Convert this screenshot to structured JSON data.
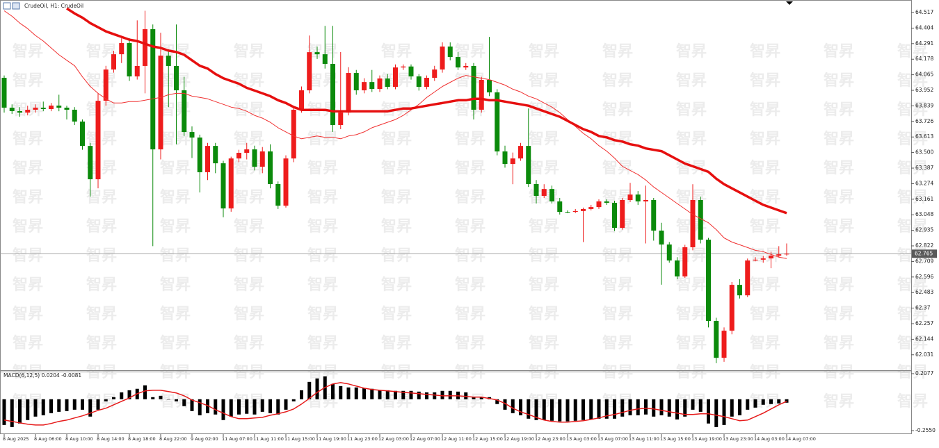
{
  "watermark": "智昇",
  "chart_data": [
    {
      "type": "candlestick",
      "title": "CrudeOil, H1:  CrudeOil",
      "up_color": "#ee1c1c",
      "down_color": "#0b8a0b",
      "ylim": [
        61.919,
        64.608
      ],
      "yticks": [
        64.517,
        64.404,
        64.291,
        64.178,
        64.065,
        63.952,
        63.839,
        63.726,
        63.613,
        {
          "value": 63.5,
          "label": "63.500"
        },
        63.387,
        63.274,
        63.161,
        63.048,
        62.935,
        62.822,
        62.709,
        62.596,
        62.483,
        62.37,
        62.257,
        62.144,
        62.031
      ],
      "last_price": 62.765,
      "categories": [
        "8 Aug 2025",
        null,
        null,
        null,
        "8 Aug 06:00",
        null,
        null,
        null,
        "8 Aug 10:00",
        null,
        null,
        null,
        "8 Aug 14:00",
        null,
        null,
        null,
        "8 Aug 18:00",
        null,
        null,
        null,
        "8 Aug 22:00",
        null,
        null,
        null,
        "9 Aug 02:00",
        null,
        null,
        null,
        "11 Aug 07:00",
        null,
        null,
        null,
        "11 Aug 11:00",
        null,
        null,
        null,
        "11 Aug 15:00",
        null,
        null,
        null,
        "11 Aug 19:00",
        null,
        null,
        null,
        "11 Aug 23:00",
        null,
        null,
        null,
        "12 Aug 03:00",
        null,
        null,
        null,
        "12 Aug 07:00",
        null,
        null,
        null,
        "12 Aug 11:00",
        null,
        null,
        null,
        "12 Aug 15:00",
        null,
        null,
        null,
        "12 Aug 19:00",
        null,
        null,
        null,
        "12 Aug 23:00",
        null,
        null,
        null,
        "13 Aug 03:00",
        null,
        null,
        null,
        "13 Aug 07:00",
        null,
        null,
        null,
        "13 Aug 11:00",
        null,
        null,
        null,
        "13 Aug 15:00",
        null,
        null,
        null,
        "13 Aug 19:00",
        null,
        null,
        null,
        "13 Aug 23:00",
        null,
        null,
        null,
        "14 Aug 03:00",
        null,
        null,
        null,
        "14 Aug 07:00"
      ],
      "open": [
        64.043,
        63.826,
        63.801,
        63.79,
        63.811,
        63.826,
        63.816,
        63.841,
        63.826,
        63.811,
        63.725,
        63.548,
        63.306,
        63.876,
        64.103,
        64.214,
        64.295,
        64.053,
        64.129,
        64.396,
        63.523,
        64.204,
        64.129,
        63.952,
        63.649,
        63.609,
        63.357,
        63.548,
        63.422,
        63.094,
        63.457,
        63.498,
        63.523,
        63.397,
        63.508,
        63.271,
        63.114,
        63.457,
        63.811,
        63.952,
        64.229,
        64.214,
        64.144,
        63.7,
        63.79,
        64.078,
        63.952,
        64.012,
        63.962,
        64.038,
        63.977,
        64.118,
        64.125,
        64.053,
        63.977,
        64.043,
        64.103,
        64.27,
        64.194,
        64.118,
        64.129,
        63.811,
        64.028,
        63.937,
        63.508,
        63.417,
        63.457,
        63.548,
        63.271,
        63.185,
        63.235,
        63.145,
        63.069,
        63.069,
        63.075,
        63.09,
        63.104,
        63.145,
        63.135,
        62.953,
        63.155,
        63.195,
        63.145,
        63.155,
        62.933,
        62.832,
        62.716,
        62.6,
        62.812,
        63.155,
        62.867,
        62.277,
        62.009,
        62.206,
        62.539,
        62.463,
        62.716,
        62.722,
        62.731,
        62.751,
        62.761
      ],
      "high": [
        64.06,
        63.85,
        63.83,
        63.84,
        63.85,
        63.87,
        63.86,
        63.92,
        63.84,
        63.83,
        63.74,
        63.57,
        63.93,
        64.13,
        64.24,
        64.33,
        64.33,
        64.46,
        64.53,
        64.43,
        64.37,
        64.25,
        64.43,
        64.05,
        63.69,
        63.63,
        63.57,
        63.57,
        63.44,
        63.47,
        63.52,
        63.57,
        63.55,
        63.54,
        63.56,
        63.29,
        63.48,
        63.84,
        63.98,
        64.35,
        64.27,
        64.42,
        64.42,
        64.23,
        64.12,
        64.1,
        64.04,
        64.1,
        64.06,
        64.07,
        64.14,
        64.14,
        64.14,
        64.07,
        64.06,
        64.13,
        64.3,
        64.3,
        64.23,
        64.15,
        64.15,
        64.05,
        64.34,
        63.96,
        63.55,
        63.5,
        63.57,
        63.82,
        63.3,
        63.27,
        63.26,
        63.17,
        63.08,
        63.09,
        63.1,
        63.12,
        63.16,
        63.16,
        63.15,
        63.17,
        63.28,
        63.22,
        63.26,
        63.17,
        62.99,
        62.85,
        62.74,
        62.83,
        63.27,
        63.18,
        62.88,
        62.3,
        62.23,
        62.56,
        62.58,
        62.73,
        62.74,
        62.75,
        62.78,
        62.82,
        62.84
      ],
      "low": [
        63.79,
        63.78,
        63.76,
        63.77,
        63.79,
        63.8,
        63.8,
        63.8,
        63.74,
        63.7,
        63.52,
        63.18,
        63.24,
        63.84,
        64.08,
        64.15,
        64.02,
        64.03,
        63.93,
        62.82,
        63.45,
        63.83,
        63.56,
        63.62,
        63.46,
        63.21,
        63.3,
        63.35,
        63.03,
        63.07,
        63.43,
        63.45,
        63.37,
        63.35,
        63.24,
        63.09,
        63.1,
        63.43,
        63.79,
        63.93,
        64.18,
        64.11,
        63.65,
        63.67,
        63.77,
        63.92,
        63.93,
        63.94,
        63.94,
        63.96,
        63.96,
        64.1,
        64.03,
        63.95,
        63.96,
        64.02,
        64.08,
        64.17,
        64.1,
        64.1,
        63.74,
        63.79,
        63.91,
        63.48,
        63.39,
        63.27,
        63.44,
        63.25,
        63.13,
        63.17,
        63.13,
        63.05,
        63.06,
        63.06,
        62.85,
        63.08,
        63.09,
        63.12,
        62.93,
        62.94,
        63.14,
        63.12,
        62.84,
        62.86,
        62.54,
        62.7,
        62.58,
        62.59,
        62.79,
        62.84,
        62.23,
        61.97,
        61.98,
        62.18,
        62.44,
        62.45,
        62.71,
        62.7,
        62.66,
        62.74,
        62.75
      ],
      "close": [
        63.826,
        63.801,
        63.79,
        63.811,
        63.826,
        63.816,
        63.841,
        63.826,
        63.811,
        63.725,
        63.548,
        63.306,
        63.876,
        64.103,
        64.214,
        64.295,
        64.053,
        64.129,
        64.396,
        63.523,
        64.204,
        64.129,
        63.952,
        63.649,
        63.609,
        63.357,
        63.548,
        63.422,
        63.094,
        63.457,
        63.498,
        63.523,
        63.397,
        63.508,
        63.271,
        63.114,
        63.457,
        63.811,
        63.952,
        64.229,
        64.214,
        64.144,
        63.7,
        63.79,
        64.078,
        63.952,
        64.012,
        63.962,
        64.038,
        63.977,
        64.118,
        64.125,
        64.053,
        63.977,
        64.043,
        64.103,
        64.27,
        64.194,
        64.118,
        64.129,
        63.811,
        64.028,
        63.937,
        63.508,
        63.417,
        63.457,
        63.548,
        63.271,
        63.185,
        63.235,
        63.145,
        63.069,
        63.069,
        63.075,
        63.09,
        63.104,
        63.145,
        63.135,
        62.953,
        63.155,
        63.195,
        63.145,
        63.155,
        62.933,
        62.832,
        62.716,
        62.6,
        62.812,
        63.155,
        62.867,
        62.277,
        62.009,
        62.206,
        62.539,
        62.463,
        62.716,
        62.722,
        62.731,
        62.751,
        62.761,
        62.765
      ],
      "overlays": [
        {
          "color": "#f03030",
          "width": 1,
          "values": [
            64.53,
            64.49,
            64.44,
            64.4,
            64.35,
            64.31,
            64.26,
            64.21,
            64.17,
            64.13,
            64.05,
            63.98,
            63.93,
            63.89,
            63.86,
            63.86,
            63.87,
            63.87,
            63.88,
            63.89,
            63.9,
            63.92,
            63.93,
            63.93,
            63.91,
            63.9,
            63.89,
            63.87,
            63.85,
            63.83,
            63.82,
            63.8,
            63.77,
            63.75,
            63.72,
            63.68,
            63.65,
            63.62,
            63.6,
            63.61,
            63.62,
            63.61,
            63.61,
            63.6,
            63.62,
            63.63,
            63.65,
            63.68,
            63.7,
            63.72,
            63.74,
            63.77,
            63.81,
            63.85,
            63.9,
            63.94,
            63.98,
            64.01,
            64.04,
            64.06,
            64.05,
            64.04,
            64.03,
            64.01,
            63.99,
            63.96,
            63.94,
            63.91,
            63.89,
            63.86,
            63.83,
            63.79,
            63.74,
            63.69,
            63.64,
            63.6,
            63.55,
            63.51,
            63.46,
            63.4,
            63.37,
            63.34,
            63.3,
            63.25,
            63.21,
            63.17,
            63.13,
            63.09,
            63.05,
            63.02,
            62.99,
            62.94,
            62.88,
            62.85,
            62.83,
            62.81,
            62.79,
            62.78,
            62.76,
            62.74,
            62.73
          ]
        },
        {
          "color": "#e60f0f",
          "width": 3.5,
          "values": [
            null,
            null,
            null,
            null,
            null,
            null,
            null,
            null,
            64.547,
            64.51,
            64.48,
            64.44,
            64.41,
            64.38,
            64.36,
            64.34,
            64.32,
            64.31,
            64.29,
            64.27,
            64.26,
            64.24,
            64.23,
            64.21,
            64.17,
            64.13,
            64.11,
            64.07,
            64.04,
            64.02,
            64.0,
            63.97,
            63.95,
            63.93,
            63.91,
            63.88,
            63.86,
            63.83,
            63.81,
            63.81,
            63.81,
            63.81,
            63.8,
            63.8,
            63.8,
            63.8,
            63.8,
            63.8,
            63.8,
            63.8,
            63.81,
            63.82,
            63.82,
            63.83,
            63.84,
            63.85,
            63.86,
            63.87,
            63.88,
            63.88,
            63.89,
            63.89,
            63.88,
            63.88,
            63.87,
            63.86,
            63.85,
            63.84,
            63.82,
            63.8,
            63.78,
            63.76,
            63.73,
            63.7,
            63.67,
            63.65,
            63.62,
            63.61,
            63.59,
            63.58,
            63.56,
            63.55,
            63.53,
            63.52,
            63.51,
            63.48,
            63.45,
            63.42,
            63.4,
            63.38,
            63.36,
            63.31,
            63.27,
            63.24,
            63.21,
            63.18,
            63.15,
            63.12,
            63.1,
            63.08,
            63.06
          ]
        }
      ]
    },
    {
      "type": "macd",
      "label": "MACD(6,12,5) 0.0204 -0.0081",
      "ylim": [
        -0.2832,
        0.2303
      ],
      "yticks": [
        0.2077,
        {
          "value": -0.255,
          "label": "-0.2550"
        }
      ],
      "histogram_color": "#000000",
      "signal_color": "#e61a1a",
      "histogram": [
        -0.209,
        -0.226,
        -0.197,
        -0.169,
        -0.141,
        -0.13,
        -0.113,
        -0.102,
        -0.096,
        -0.085,
        -0.085,
        -0.141,
        -0.085,
        -0.017,
        0.017,
        0.056,
        0.073,
        0.085,
        0.113,
        0.017,
        0.028,
        0,
        -0.017,
        -0.056,
        -0.096,
        -0.13,
        -0.113,
        -0.124,
        -0.169,
        -0.141,
        -0.124,
        -0.118,
        -0.124,
        -0.102,
        -0.113,
        -0.124,
        -0.085,
        -0.017,
        0.073,
        0.141,
        0.169,
        0.186,
        0.124,
        0.107,
        0.096,
        0.096,
        0.09,
        0.085,
        0.073,
        0.073,
        0.068,
        0.068,
        0.068,
        0.062,
        0.056,
        0.056,
        0.068,
        0.068,
        0.062,
        0.056,
        0.017,
        0.017,
        0.017,
        -0.039,
        -0.085,
        -0.113,
        -0.13,
        -0.158,
        -0.169,
        -0.169,
        -0.175,
        -0.18,
        -0.18,
        -0.175,
        -0.169,
        -0.164,
        -0.158,
        -0.158,
        -0.158,
        -0.141,
        -0.13,
        -0.13,
        -0.124,
        -0.141,
        -0.13,
        -0.141,
        -0.164,
        -0.141,
        -0.085,
        -0.102,
        -0.197,
        -0.226,
        -0.209,
        -0.141,
        -0.13,
        -0.085,
        -0.068,
        -0.045,
        -0.039,
        -0.034,
        -0.028
      ],
      "signal": [
        -0.169,
        -0.18,
        -0.192,
        -0.203,
        -0.209,
        -0.209,
        -0.197,
        -0.18,
        -0.169,
        -0.152,
        -0.135,
        -0.113,
        -0.09,
        -0.073,
        -0.045,
        -0.017,
        0.011,
        0.045,
        0.068,
        0.073,
        0.073,
        0.062,
        0.051,
        0.028,
        -0.006,
        -0.028,
        -0.051,
        -0.085,
        -0.113,
        -0.141,
        -0.158,
        -0.158,
        -0.152,
        -0.147,
        -0.13,
        -0.118,
        -0.102,
        -0.079,
        -0.039,
        0.006,
        0.056,
        0.096,
        0.124,
        0.135,
        0.124,
        0.107,
        0.09,
        0.079,
        0.073,
        0.068,
        0.062,
        0.056,
        0.051,
        0.045,
        0.039,
        0.034,
        0.028,
        0.028,
        0.028,
        0.023,
        0.017,
        0.017,
        0.006,
        -0.006,
        -0.034,
        -0.073,
        -0.102,
        -0.124,
        -0.147,
        -0.169,
        -0.18,
        -0.186,
        -0.186,
        -0.18,
        -0.175,
        -0.164,
        -0.152,
        -0.135,
        -0.124,
        -0.107,
        -0.09,
        -0.079,
        -0.073,
        -0.079,
        -0.09,
        -0.102,
        -0.113,
        -0.124,
        -0.124,
        -0.118,
        -0.118,
        -0.13,
        -0.141,
        -0.158,
        -0.175,
        -0.169,
        -0.141,
        -0.113,
        -0.079,
        -0.045,
        -0.017
      ]
    }
  ]
}
